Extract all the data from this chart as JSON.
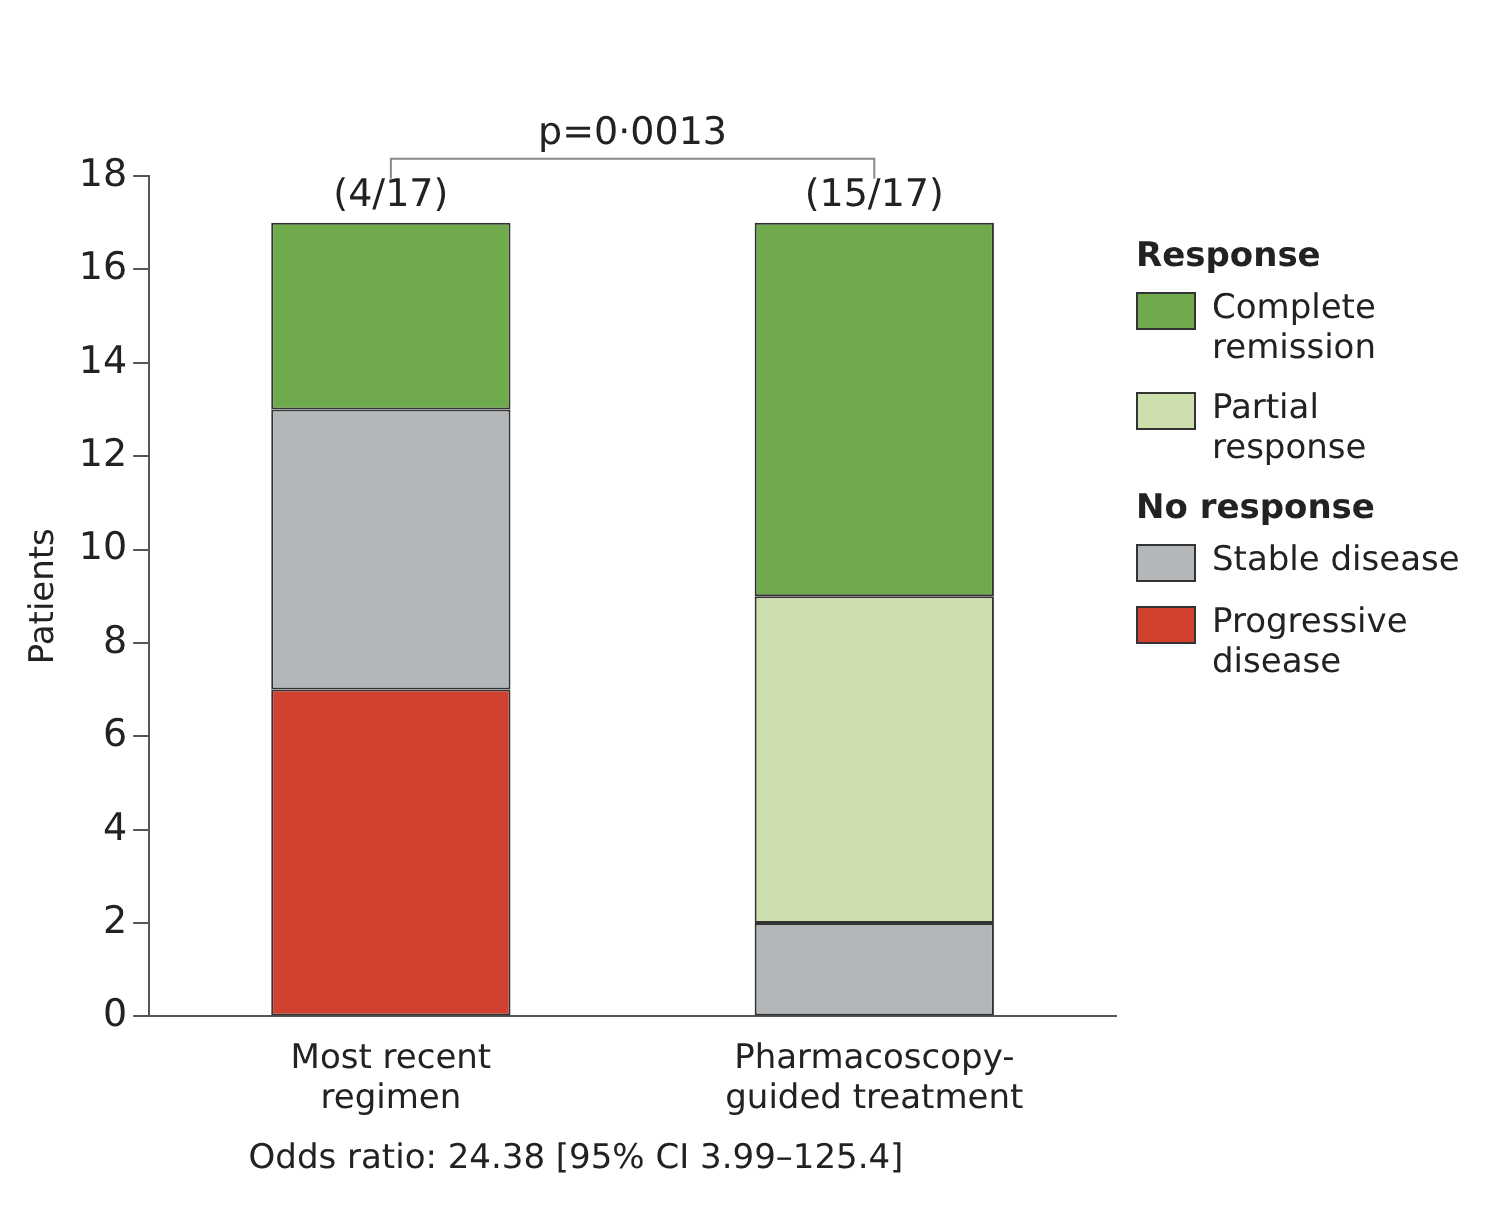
{
  "chart_data": {
    "type": "bar",
    "stacked": true,
    "ylabel": "Patients",
    "categories": [
      "Most recent regimen",
      "Pharmacoscopy-guided treatment"
    ],
    "series": [
      {
        "name": "Progressive disease",
        "color": "#d2402f",
        "values": [
          7,
          0
        ]
      },
      {
        "name": "Stable disease",
        "color": "#b3b7b9",
        "values": [
          6,
          2
        ]
      },
      {
        "name": "Partial response",
        "color": "#cddfad",
        "values": [
          0,
          7
        ]
      },
      {
        "name": "Complete remission",
        "color": "#6fab4c",
        "values": [
          4,
          8
        ]
      }
    ],
    "ylim": [
      0,
      18
    ],
    "yticks": [
      0,
      2,
      4,
      6,
      8,
      10,
      12,
      14,
      16,
      18
    ],
    "grid": false,
    "legend": "right",
    "annotations": [
      {
        "text": "(4/17)",
        "x": "Most recent regimen",
        "y": 17
      },
      {
        "text": "(15/17)",
        "x": "Pharmacoscopy-guided treatment",
        "y": 17
      },
      "p=0·0013",
      "Response",
      "No response",
      "Odds ratio: 24.38 [95% CI 3.99–125.4]"
    ]
  }
}
